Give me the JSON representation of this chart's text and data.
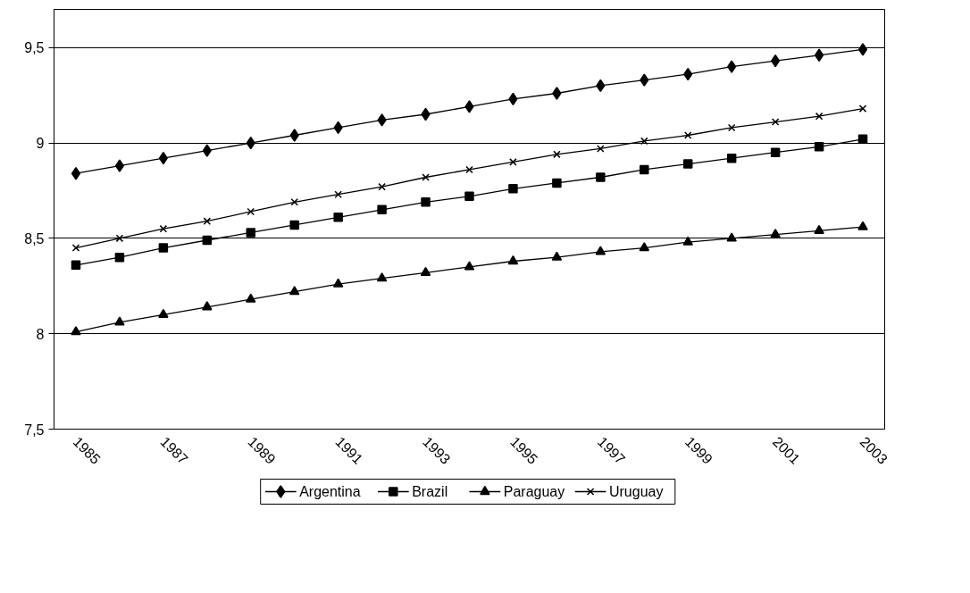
{
  "chart_data": {
    "type": "line",
    "categories": [
      "1985",
      null,
      "1987",
      null,
      "1989",
      null,
      "1991",
      null,
      "1993",
      null,
      "1995",
      null,
      "1997",
      null,
      "1999",
      null,
      "2001",
      null,
      "2003"
    ],
    "series": [
      {
        "name": "Argentina",
        "color": "#000000",
        "marker": "diamond",
        "values": [
          8.84,
          8.88,
          8.92,
          8.96,
          9.0,
          9.04,
          9.08,
          9.12,
          9.15,
          9.19,
          9.23,
          9.26,
          9.3,
          9.33,
          9.36,
          9.4,
          9.43,
          9.46,
          9.49
        ]
      },
      {
        "name": "Brazil",
        "color": "#000000",
        "marker": "square",
        "values": [
          8.36,
          8.4,
          8.45,
          8.49,
          8.53,
          8.57,
          8.61,
          8.65,
          8.69,
          8.72,
          8.76,
          8.79,
          8.82,
          8.86,
          8.89,
          8.92,
          8.95,
          8.98,
          9.02
        ]
      },
      {
        "name": "Paraguay",
        "color": "#000000",
        "marker": "triangle",
        "values": [
          8.01,
          8.06,
          8.1,
          8.14,
          8.18,
          8.22,
          8.26,
          8.29,
          8.32,
          8.35,
          8.38,
          8.4,
          8.43,
          8.45,
          8.48,
          8.5,
          8.52,
          8.54,
          8.56
        ]
      },
      {
        "name": "Uruguay",
        "color": "#000000",
        "marker": "cross",
        "values": [
          8.45,
          8.5,
          8.55,
          8.59,
          8.64,
          8.69,
          8.73,
          8.77,
          8.82,
          8.86,
          8.9,
          8.94,
          8.97,
          9.01,
          9.04,
          9.08,
          9.11,
          9.14,
          9.18
        ]
      }
    ],
    "ylim": [
      7.5,
      9.7
    ],
    "yticks": [
      {
        "value": 7.5,
        "label": "7,5"
      },
      8,
      {
        "value": 8.5,
        "label": "8,5"
      },
      9,
      {
        "value": 9.5,
        "label": "9,5"
      }
    ],
    "grid": "y",
    "legend": "bottom",
    "line_style": "solid"
  }
}
